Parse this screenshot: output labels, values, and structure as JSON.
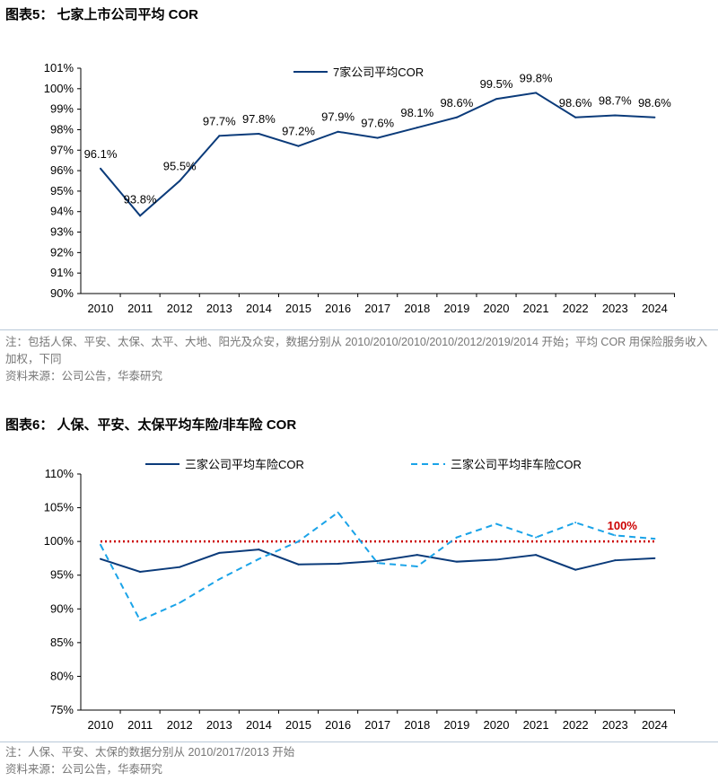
{
  "chart_data": [
    {
      "type": "line",
      "title": "图表5： 七家上市公司平均 COR",
      "categories": [
        "2010",
        "2011",
        "2012",
        "2013",
        "2014",
        "2015",
        "2016",
        "2017",
        "2018",
        "2019",
        "2020",
        "2021",
        "2022",
        "2023",
        "2024"
      ],
      "ylim": [
        90,
        101
      ],
      "yticks": [
        "90%",
        "91%",
        "92%",
        "93%",
        "94%",
        "95%",
        "96%",
        "97%",
        "98%",
        "99%",
        "100%",
        "101%"
      ],
      "legend": "top-center",
      "grid": false,
      "series": [
        {
          "name": "7家公司平均COR",
          "color": "#0b3b7a",
          "style": "solid",
          "values": [
            96.1,
            93.8,
            95.5,
            97.7,
            97.8,
            97.2,
            97.9,
            97.6,
            98.1,
            98.6,
            99.5,
            99.8,
            98.6,
            98.7,
            98.6
          ],
          "labels": [
            "96.1%",
            "93.8%",
            "95.5%",
            "97.7%",
            "97.8%",
            "97.2%",
            "97.9%",
            "97.6%",
            "98.1%",
            "98.6%",
            "99.5%",
            "99.8%",
            "98.6%",
            "98.7%",
            "98.6%"
          ]
        }
      ],
      "notes": [
        "注：包括人保、平安、太保、太平、大地、阳光及众安，数据分别从 2010/2010/2010/2010/2012/2019/2014 开始；平均 COR 用保险服务收入加权，下同",
        "资料来源：公司公告，华泰研究"
      ]
    },
    {
      "type": "line",
      "title": "图表6： 人保、平安、太保平均车险/非车险 COR",
      "categories": [
        "2010",
        "2011",
        "2012",
        "2013",
        "2014",
        "2015",
        "2016",
        "2017",
        "2018",
        "2019",
        "2020",
        "2021",
        "2022",
        "2023",
        "2024"
      ],
      "ylim": [
        75,
        110
      ],
      "yticks": [
        "75%",
        "80%",
        "85%",
        "90%",
        "95%",
        "100%",
        "105%",
        "110%"
      ],
      "legend": "top",
      "grid": false,
      "series": [
        {
          "name": "三家公司平均车险COR",
          "color": "#0b3b7a",
          "style": "solid",
          "values": [
            97.4,
            95.5,
            96.2,
            98.3,
            98.8,
            96.6,
            96.7,
            97.1,
            98.0,
            97.0,
            97.3,
            98.0,
            95.8,
            97.2,
            97.5
          ]
        },
        {
          "name": "三家公司平均非车险COR",
          "color": "#1aa3e8",
          "style": "dashed",
          "values": [
            99.5,
            88.3,
            90.9,
            94.4,
            97.4,
            100.0,
            104.3,
            96.8,
            96.3,
            100.6,
            102.6,
            100.6,
            102.8,
            100.9,
            100.4
          ]
        }
      ],
      "reference_line": {
        "value": 100,
        "label": "100%",
        "color": "#cc0000",
        "style": "dotted"
      },
      "notes": [
        "注：人保、平安、太保的数据分别从 2010/2017/2013 开始",
        "资料来源：公司公告，华泰研究"
      ]
    }
  ]
}
